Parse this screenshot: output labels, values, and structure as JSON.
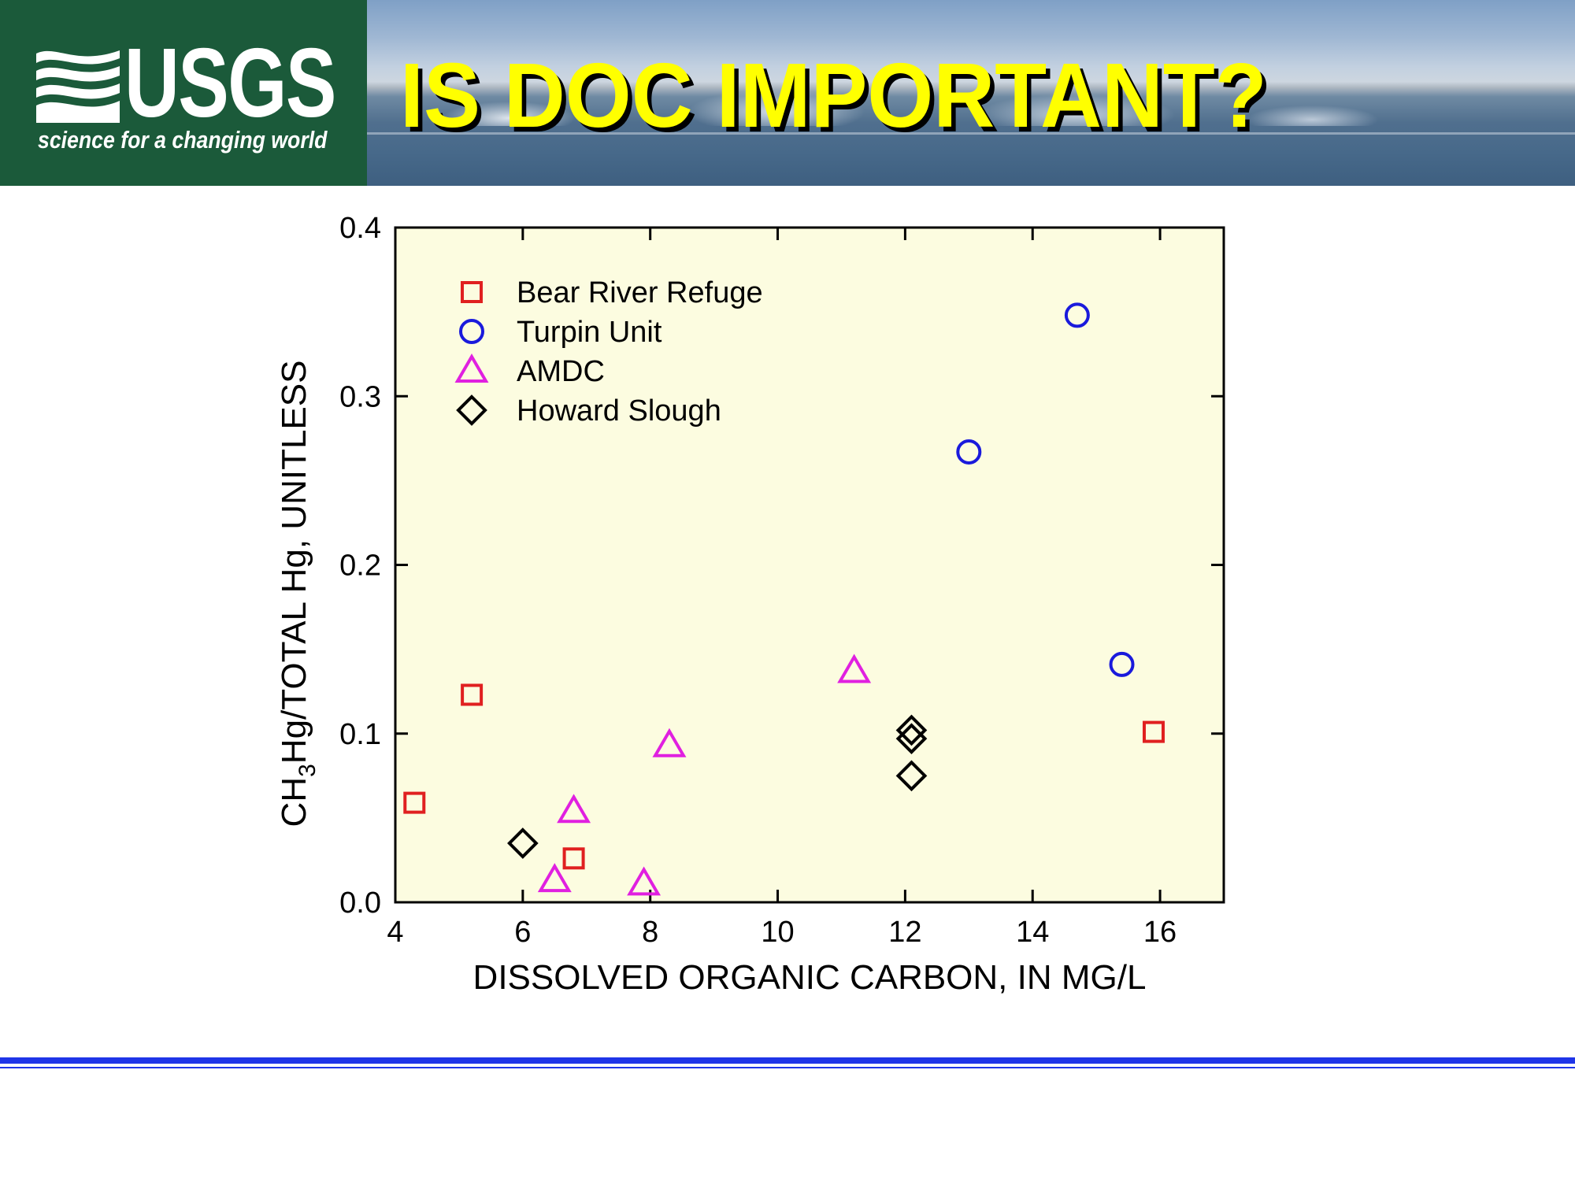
{
  "header": {
    "logo": {
      "wordmark": "USGS",
      "tagline": "science for a changing world"
    },
    "title": "IS DOC IMPORTANT?",
    "title_color": "#ffff00",
    "logo_background": "#1b5a3a"
  },
  "colors": {
    "plot_background": "#fcfce0",
    "rule": "#1f35e8"
  },
  "chart_data": {
    "type": "scatter",
    "title": "",
    "xlabel": "DISSOLVED ORGANIC CARBON, IN MG/L",
    "ylabel": {
      "prefix": "CH",
      "subscript": "3",
      "suffix": "Hg/TOTAL Hg, UNITLESS"
    },
    "xlim": [
      4,
      17
    ],
    "ylim": [
      0.0,
      0.4
    ],
    "xticks": [
      "4",
      "6",
      "8",
      "10",
      "12",
      "14",
      "16"
    ],
    "yticks": [
      "0.0",
      "0.1",
      "0.2",
      "0.3",
      "0.4"
    ],
    "grid": false,
    "legend_position": "top-left",
    "series": [
      {
        "name": "Bear River Refuge",
        "marker": "square",
        "color": "#e02020",
        "points": [
          [
            4.3,
            0.059
          ],
          [
            5.2,
            0.123
          ],
          [
            6.8,
            0.026
          ],
          [
            15.9,
            0.101
          ]
        ]
      },
      {
        "name": "Turpin Unit",
        "marker": "circle",
        "color": "#1a1adc",
        "points": [
          [
            13.0,
            0.267
          ],
          [
            14.7,
            0.348
          ],
          [
            15.4,
            0.141
          ]
        ]
      },
      {
        "name": "AMDC",
        "marker": "triangle",
        "color": "#e020e0",
        "points": [
          [
            6.5,
            0.013
          ],
          [
            6.8,
            0.054
          ],
          [
            7.9,
            0.011
          ],
          [
            8.3,
            0.093
          ],
          [
            11.2,
            0.137
          ]
        ]
      },
      {
        "name": "Howard Slough",
        "marker": "diamond",
        "color": "#000000",
        "points": [
          [
            6.0,
            0.035
          ],
          [
            12.1,
            0.102
          ],
          [
            12.1,
            0.097
          ],
          [
            12.1,
            0.075
          ]
        ]
      }
    ]
  }
}
